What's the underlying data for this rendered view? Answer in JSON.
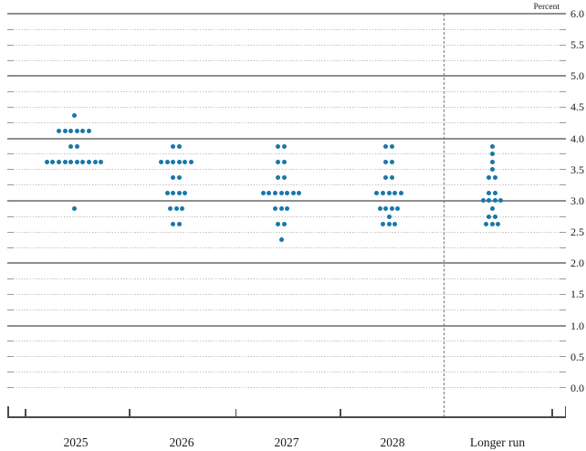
{
  "chart_data": {
    "type": "scatter",
    "title": "",
    "unit_label": "Percent",
    "ylim": [
      0.0,
      6.0
    ],
    "ytick_step": 0.5,
    "grid_interval": 0.25,
    "ytick_labels": [
      "6.0",
      "5.5",
      "5.0",
      "4.5",
      "4.0",
      "3.5",
      "3.0",
      "2.5",
      "2.0",
      "1.5",
      "1.0",
      "0.5",
      "0.0"
    ],
    "solid_line_levels": [
      6.0,
      5.0,
      4.0,
      3.0,
      2.0,
      1.0
    ],
    "dot_color": "#1878a8",
    "legend_position": "none",
    "columns": [
      {
        "label": "2025",
        "dots": [
          {
            "rate": 4.375,
            "count": 1
          },
          {
            "rate": 4.125,
            "count": 6
          },
          {
            "rate": 3.875,
            "count": 2
          },
          {
            "rate": 3.625,
            "count": 10
          },
          {
            "rate": 2.875,
            "count": 1
          }
        ]
      },
      {
        "label": "2026",
        "dots": [
          {
            "rate": 3.875,
            "count": 2
          },
          {
            "rate": 3.625,
            "count": 6
          },
          {
            "rate": 3.375,
            "count": 2
          },
          {
            "rate": 3.125,
            "count": 4
          },
          {
            "rate": 2.875,
            "count": 3
          },
          {
            "rate": 2.625,
            "count": 2
          }
        ]
      },
      {
        "label": "2027",
        "dots": [
          {
            "rate": 3.875,
            "count": 2
          },
          {
            "rate": 3.625,
            "count": 2
          },
          {
            "rate": 3.375,
            "count": 2
          },
          {
            "rate": 3.125,
            "count": 7
          },
          {
            "rate": 2.875,
            "count": 3
          },
          {
            "rate": 2.625,
            "count": 2
          },
          {
            "rate": 2.375,
            "count": 1
          }
        ]
      },
      {
        "label": "2028",
        "dots": [
          {
            "rate": 3.875,
            "count": 2
          },
          {
            "rate": 3.625,
            "count": 2
          },
          {
            "rate": 3.375,
            "count": 2
          },
          {
            "rate": 3.125,
            "count": 5
          },
          {
            "rate": 2.875,
            "count": 4
          },
          {
            "rate": 2.75,
            "count": 1
          },
          {
            "rate": 2.625,
            "count": 3
          }
        ]
      },
      {
        "label": "Longer run",
        "dots": [
          {
            "rate": 3.875,
            "count": 1
          },
          {
            "rate": 3.75,
            "count": 1
          },
          {
            "rate": 3.625,
            "count": 1
          },
          {
            "rate": 3.5,
            "count": 1
          },
          {
            "rate": 3.375,
            "count": 2
          },
          {
            "rate": 3.125,
            "count": 2
          },
          {
            "rate": 3.0,
            "count": 4
          },
          {
            "rate": 2.875,
            "count": 1
          },
          {
            "rate": 2.75,
            "count": 2
          },
          {
            "rate": 2.625,
            "count": 3
          }
        ]
      }
    ],
    "separator": {
      "after_column": "2028",
      "style": "dashed"
    }
  }
}
